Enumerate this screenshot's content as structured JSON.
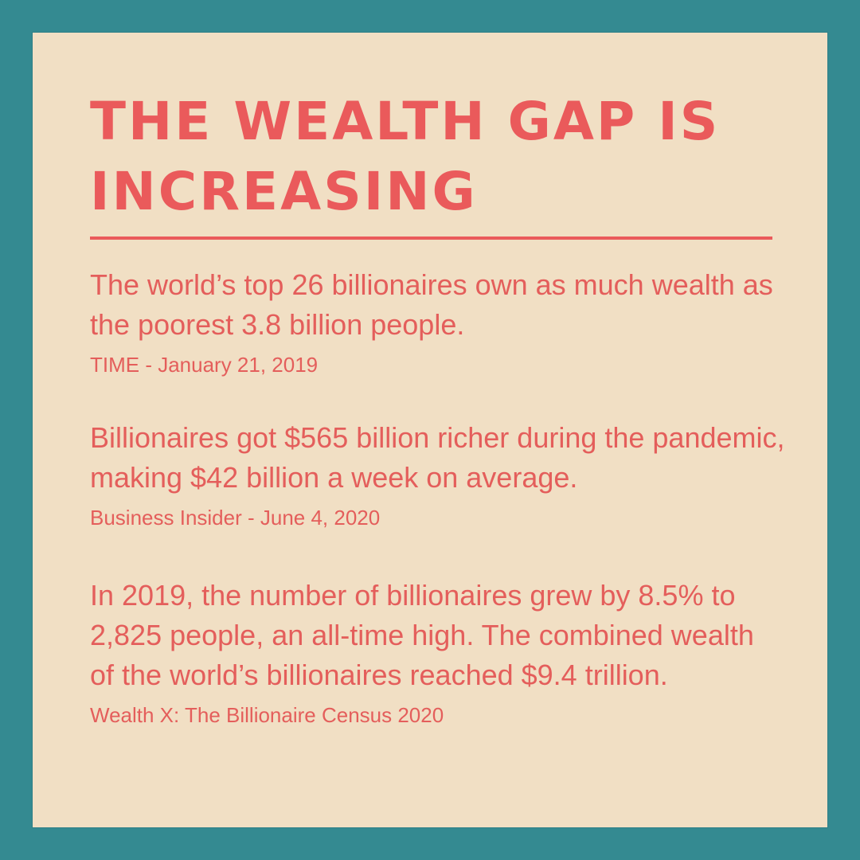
{
  "title": "The Wealth Gap is Increasing",
  "facts": [
    {
      "text": "The world’s top 26 billionaires own as much wealth as the poorest 3.8 billion people.",
      "source": "TIME - January 21, 2019"
    },
    {
      "text": "Billionaires got $565 billion richer during the pandemic, making $42 billion a week on average.",
      "source": "Business Insider - June 4, 2020"
    },
    {
      "text": "In 2019, the number of billionaires grew by 8.5% to 2,825 people, an all-time high. The combined wealth of the world’s billionaires reached $9.4 trillion.",
      "source": "Wealth X: The Billionaire Census 2020"
    }
  ],
  "colors": {
    "background": "#348a91",
    "card": "#f1dfc4",
    "accent": "#ea5a5b"
  }
}
